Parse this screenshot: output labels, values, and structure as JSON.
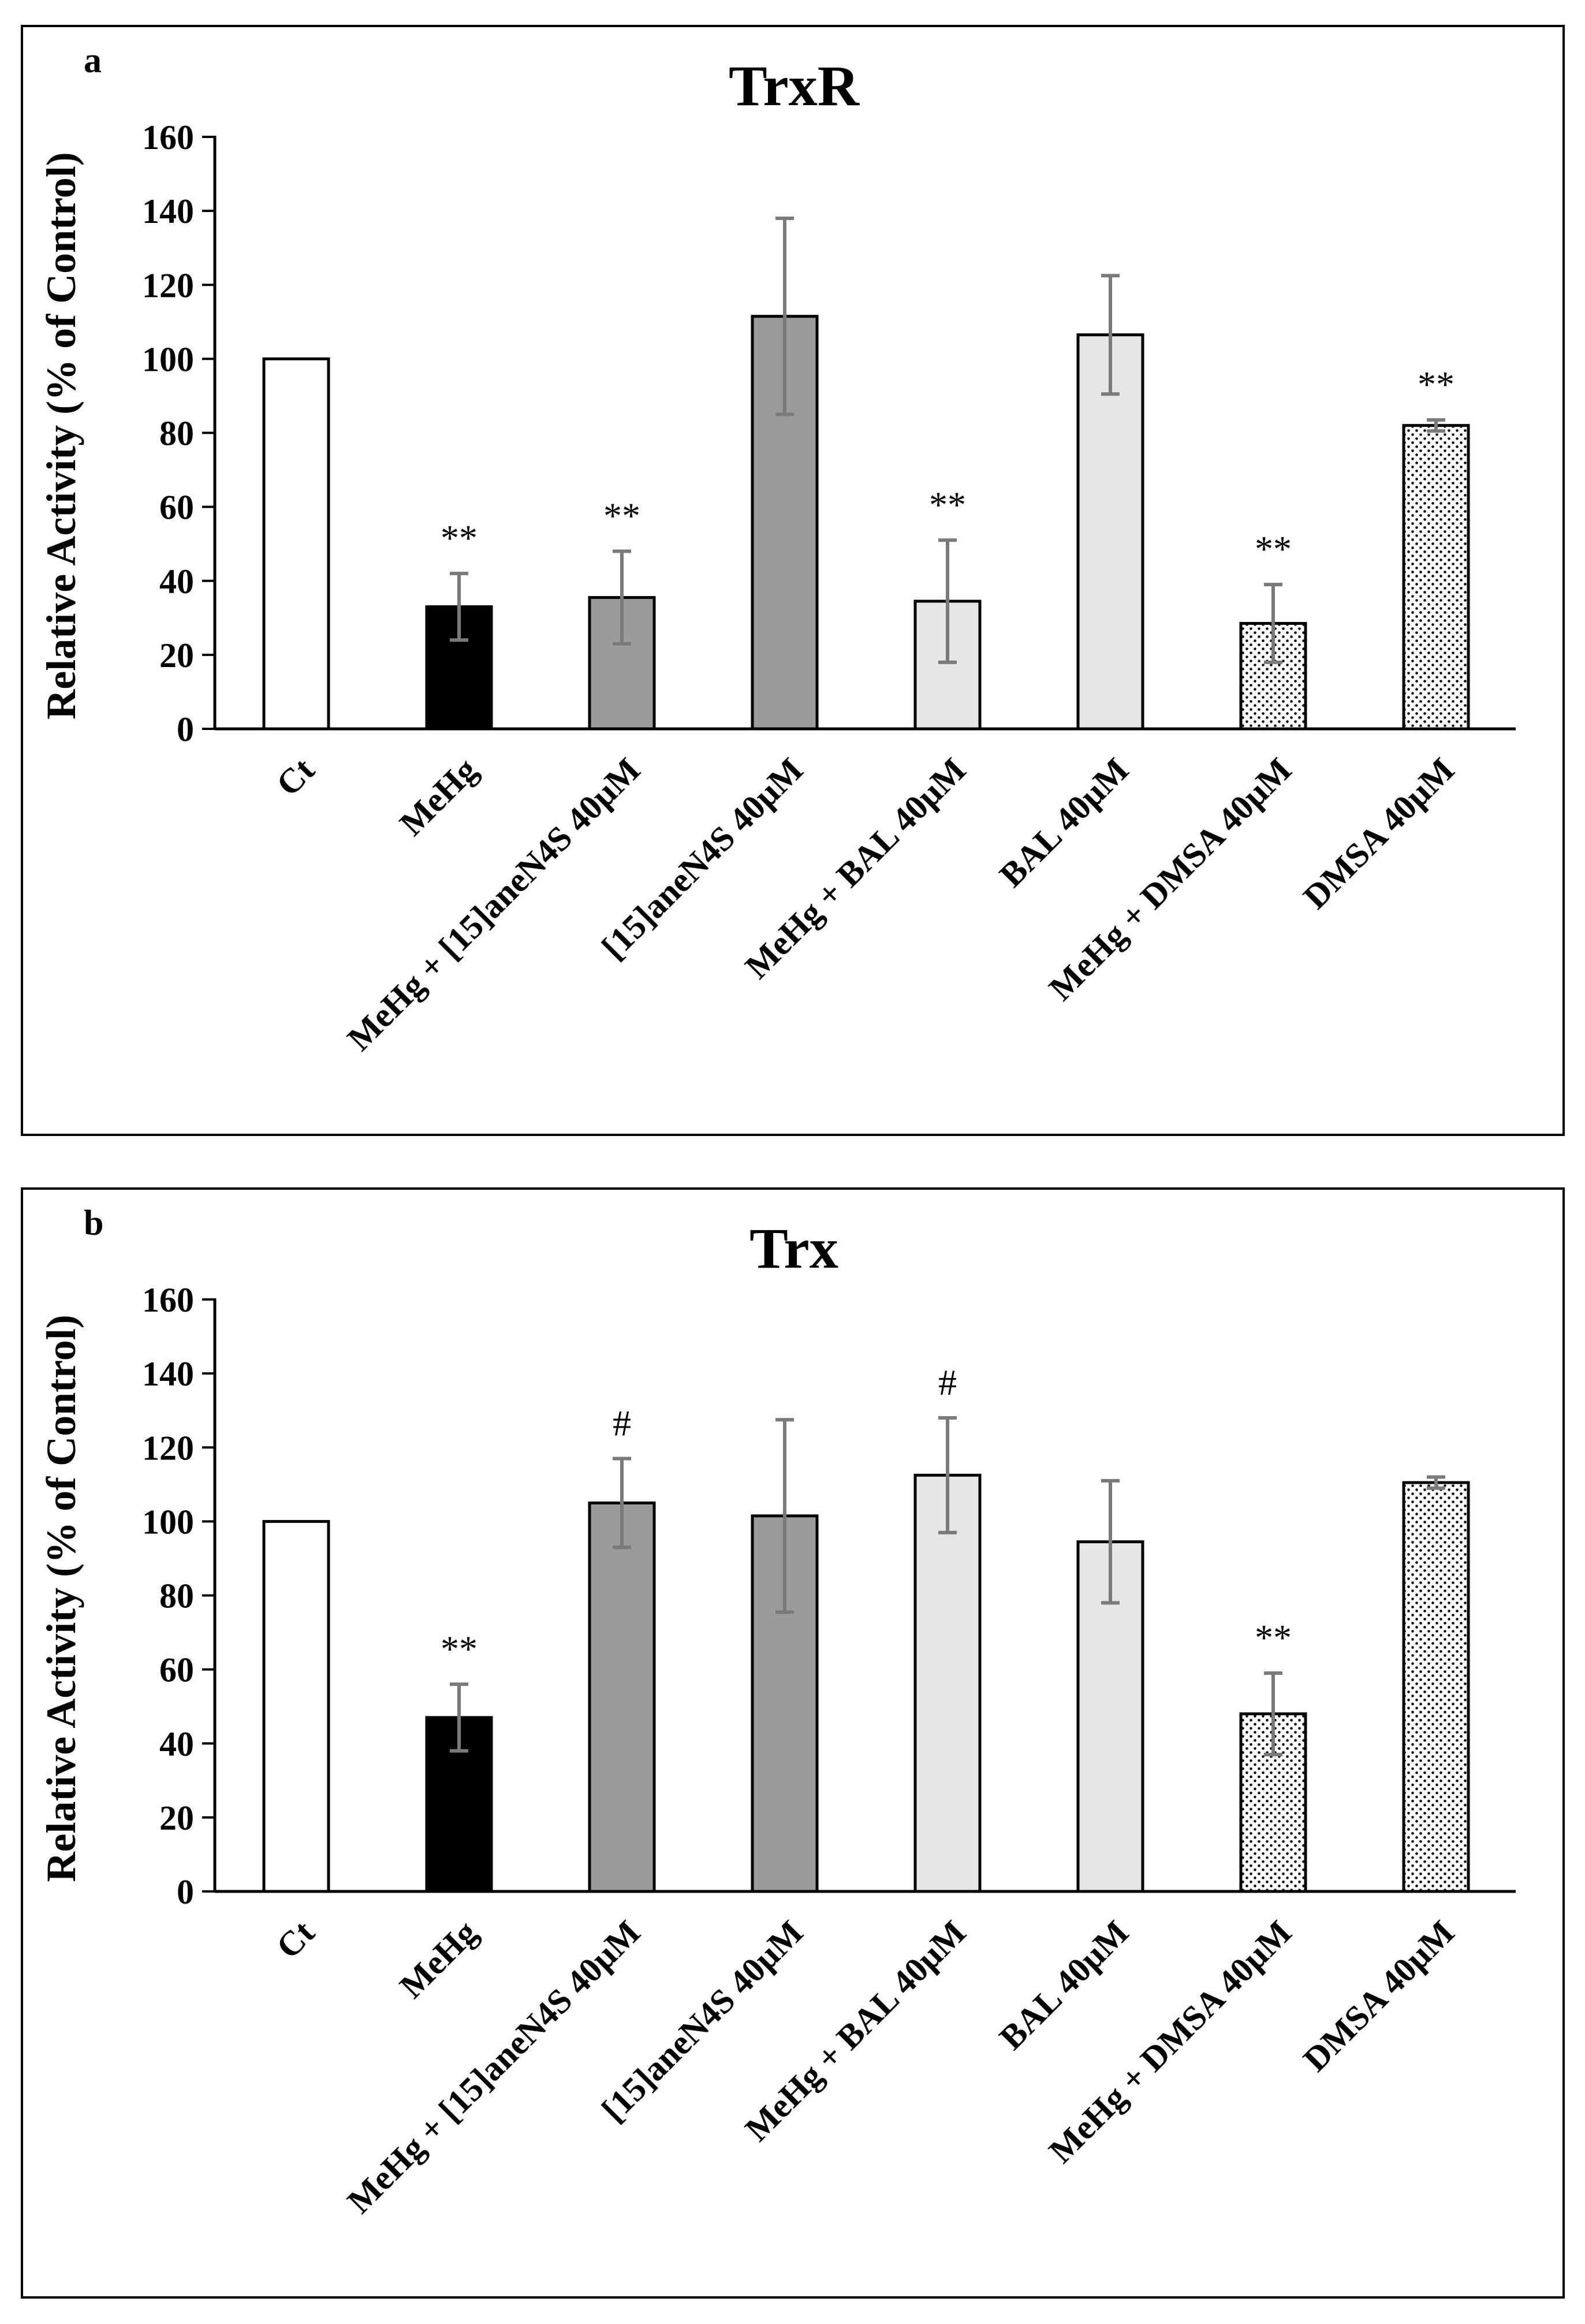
{
  "figure": {
    "y_axis_label": "Relative Activity (% of Control)",
    "categories": [
      "Ct",
      "MeHg",
      "MeHg + [15]aneN4S 40µM",
      "[15]aneN4S 40µM",
      "MeHg + BAL 40µM",
      "BAL 40µM",
      "MeHg + DMSA 40µM",
      "DMSA 40µM"
    ],
    "bar_fills": [
      "white",
      "black",
      "medium-gray",
      "medium-gray",
      "light-gray",
      "light-gray",
      "dotted",
      "dotted"
    ],
    "colors": {
      "white": "#ffffff",
      "black": "#000000",
      "medium-gray": "#9b9b9b",
      "light-gray": "#e6e6e6",
      "error-bar": "#7a7a7a"
    }
  },
  "chart_data": [
    {
      "type": "bar",
      "panel": "a",
      "title": "TrxR",
      "ylabel": "Relative Activity (% of Control)",
      "xlabel": "",
      "ylim": [
        0,
        160
      ],
      "yticks": [
        0,
        20,
        40,
        60,
        80,
        100,
        120,
        140,
        160
      ],
      "grid": false,
      "categories": [
        "Ct",
        "MeHg",
        "MeHg + [15]aneN4S 40µM",
        "[15]aneN4S 40µM",
        "MeHg + BAL 40µM",
        "BAL 40µM",
        "MeHg + DMSA 40µM",
        "DMSA 40µM"
      ],
      "values": [
        100,
        33,
        35.5,
        111.5,
        34.5,
        106.5,
        28.5,
        82
      ],
      "errors": [
        0,
        9,
        12.5,
        26.5,
        16.5,
        16,
        10.5,
        1.5
      ],
      "annotations": [
        "",
        "**",
        "**",
        "",
        "**",
        "",
        "**",
        "**"
      ]
    },
    {
      "type": "bar",
      "panel": "b",
      "title": "Trx",
      "ylabel": "Relative Activity (% of Control)",
      "xlabel": "",
      "ylim": [
        0,
        160
      ],
      "yticks": [
        0,
        20,
        40,
        60,
        80,
        100,
        120,
        140,
        160
      ],
      "grid": false,
      "categories": [
        "Ct",
        "MeHg",
        "MeHg + [15]aneN4S 40µM",
        "[15]aneN4S 40µM",
        "MeHg + BAL 40µM",
        "BAL 40µM",
        "MeHg + DMSA 40µM",
        "DMSA 40µM"
      ],
      "values": [
        100,
        47,
        105,
        101.5,
        112.5,
        94.5,
        48,
        110.5
      ],
      "errors": [
        0,
        9,
        12,
        26,
        15.5,
        16.5,
        11,
        1.5
      ],
      "annotations": [
        "",
        "**",
        "#",
        "",
        "#",
        "",
        "**",
        ""
      ]
    }
  ]
}
